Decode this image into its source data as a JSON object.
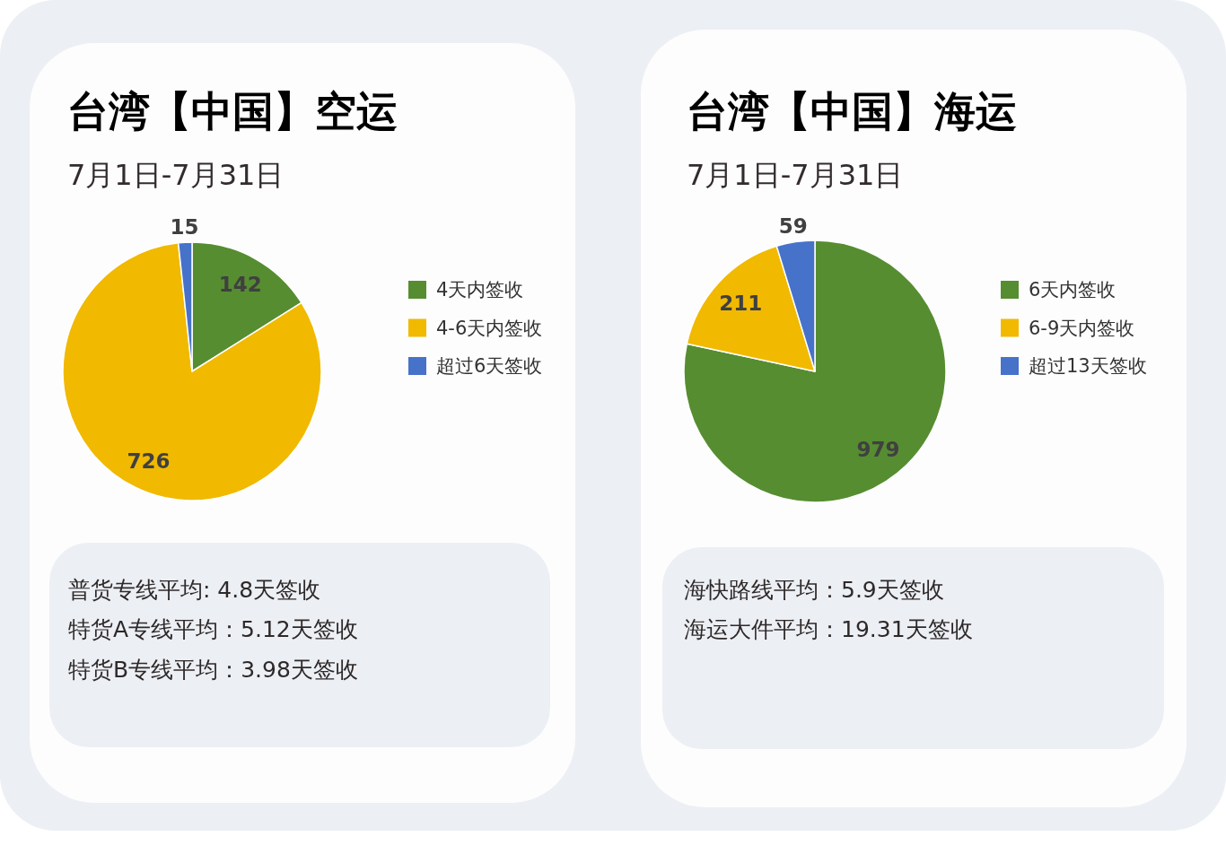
{
  "chart_data": [
    {
      "type": "pie",
      "title": "台湾【中国】空运",
      "subtitle": "7月1日-7月31日",
      "categories": [
        "4天内签收",
        "4-6天内签收",
        "超过6天签收"
      ],
      "values": [
        142,
        726,
        15
      ],
      "colors": [
        "#568d31",
        "#f1b900",
        "#4672c9"
      ],
      "data_labels": true,
      "legend": "right",
      "annotations": [
        "普货专线平均: 4.8天签收",
        "特货A专线平均：5.12天签收",
        "特货B专线平均：3.98天签收"
      ]
    },
    {
      "type": "pie",
      "title": "台湾【中国】海运",
      "subtitle": "7月1日-7月31日",
      "categories": [
        "6天内签收",
        "6-9天内签收",
        "超过13天签收"
      ],
      "values": [
        979,
        211,
        59
      ],
      "colors": [
        "#568d31",
        "#f1b900",
        "#4672c9"
      ],
      "data_labels": true,
      "legend": "right",
      "annotations": [
        "海快路线平均：5.9天签收",
        "海运大件平均：19.31天签收"
      ]
    }
  ]
}
